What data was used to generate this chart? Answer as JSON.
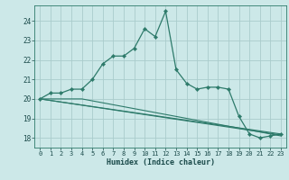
{
  "title": "",
  "xlabel": "Humidex (Indice chaleur)",
  "background_color": "#cce8e8",
  "grid_color": "#aacccc",
  "line_color": "#2d7a6a",
  "xlim": [
    -0.5,
    23.5
  ],
  "ylim": [
    17.5,
    24.8
  ],
  "yticks": [
    18,
    19,
    20,
    21,
    22,
    23,
    24
  ],
  "xticks": [
    0,
    1,
    2,
    3,
    4,
    5,
    6,
    7,
    8,
    9,
    10,
    11,
    12,
    13,
    14,
    15,
    16,
    17,
    18,
    19,
    20,
    21,
    22,
    23
  ],
  "line1_x": [
    0,
    1,
    2,
    3,
    4,
    5,
    6,
    7,
    8,
    9,
    10,
    11,
    12,
    13,
    14,
    15,
    16,
    17,
    18,
    19,
    20,
    21,
    22,
    23
  ],
  "line1_y": [
    20.0,
    20.3,
    20.3,
    20.5,
    20.5,
    21.0,
    21.8,
    22.2,
    22.2,
    22.6,
    23.6,
    23.2,
    24.5,
    21.5,
    20.8,
    20.5,
    20.6,
    20.6,
    20.5,
    19.1,
    18.2,
    18.0,
    18.1,
    18.2
  ],
  "line2_x": [
    0,
    23
  ],
  "line2_y": [
    20.0,
    18.2
  ],
  "line3_x": [
    0,
    23
  ],
  "line3_y": [
    20.0,
    18.15
  ],
  "line4_x": [
    0,
    4,
    23
  ],
  "line4_y": [
    20.0,
    20.0,
    18.1
  ]
}
